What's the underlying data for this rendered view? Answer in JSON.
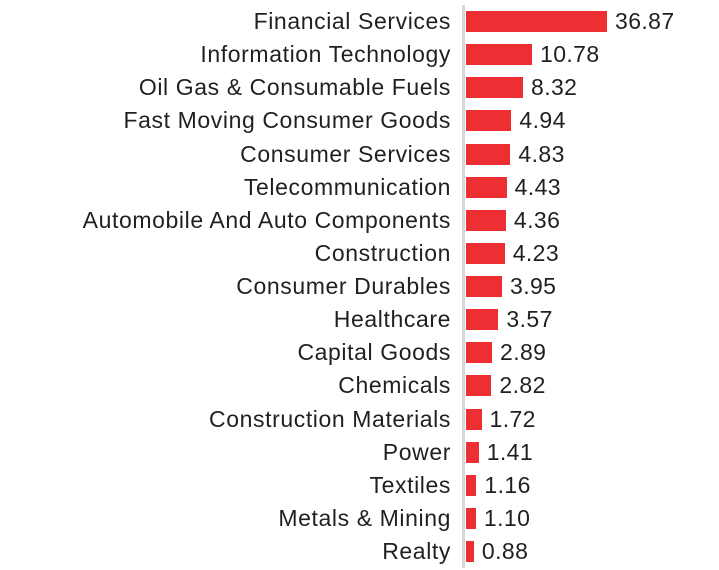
{
  "chart_data": {
    "type": "bar",
    "orientation": "horizontal",
    "title": "",
    "xlabel": "",
    "ylabel": "",
    "grid": false,
    "legend": false,
    "value_label_position": "outside-end",
    "bar_color": "#ED2F33",
    "axis_line_color": "#D9D9D9",
    "label_color": "#231F20",
    "categories": [
      "Financial Services",
      "Information Technology",
      "Oil Gas & Consumable Fuels",
      "Fast Moving Consumer Goods",
      "Consumer Services",
      "Telecommunication",
      "Automobile And Auto Components",
      "Construction",
      "Consumer Durables",
      "Healthcare",
      "Capital Goods",
      "Chemicals",
      "Construction Materials",
      "Power",
      "Textiles",
      "Metals & Mining",
      "Realty"
    ],
    "values": [
      36.87,
      10.78,
      8.32,
      4.94,
      4.83,
      4.43,
      4.36,
      4.23,
      3.95,
      3.57,
      2.89,
      2.82,
      1.72,
      1.41,
      1.16,
      1.1,
      0.88
    ],
    "value_labels": [
      "36.87",
      "10.78",
      "8.32",
      "4.94",
      "4.83",
      "4.43",
      "4.36",
      "4.23",
      "3.95",
      "3.57",
      "2.89",
      "2.82",
      "1.72",
      "1.41",
      "1.16",
      "1.10",
      "0.88"
    ]
  }
}
